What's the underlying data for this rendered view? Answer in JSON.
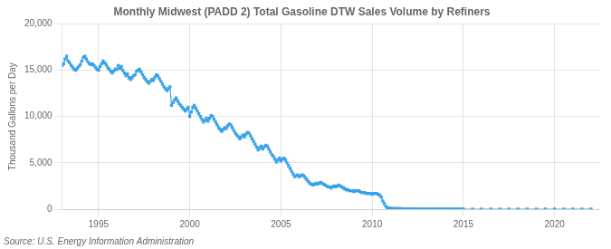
{
  "chart_data": {
    "type": "line",
    "title": "Monthly Midwest (PADD 2) Total Gasoline DTW Sales Volume by Refiners",
    "ylabel": "Thousand Gallons per Day",
    "annotations": [
      "Source: U.S. Energy Information Administration"
    ],
    "marker": "square",
    "grid": true,
    "xlim": [
      1993.0,
      2022.5
    ],
    "xticks": [
      1995,
      2000,
      2005,
      2010,
      2015,
      2020
    ],
    "ylim": [
      0,
      20000
    ],
    "yticks": [
      0,
      {
        "value": 5000,
        "label": "5,000"
      },
      {
        "value": 10000,
        "label": "10,000"
      },
      {
        "value": 15000,
        "label": "15,000"
      },
      {
        "value": 20000,
        "label": "20,000"
      }
    ],
    "x": [
      1993.0,
      1993.083,
      1993.167,
      1993.25,
      1993.333,
      1993.417,
      1993.5,
      1993.583,
      1993.667,
      1993.75,
      1993.833,
      1993.917,
      1994.0,
      1994.083,
      1994.167,
      1994.25,
      1994.333,
      1994.417,
      1994.5,
      1994.583,
      1994.667,
      1994.75,
      1994.833,
      1994.917,
      1995.0,
      1995.083,
      1995.167,
      1995.25,
      1995.333,
      1995.417,
      1995.5,
      1995.583,
      1995.667,
      1995.75,
      1995.833,
      1995.917,
      1996.0,
      1996.083,
      1996.167,
      1996.25,
      1996.333,
      1996.417,
      1996.5,
      1996.583,
      1996.667,
      1996.75,
      1996.833,
      1996.917,
      1997.0,
      1997.083,
      1997.167,
      1997.25,
      1997.333,
      1997.417,
      1997.5,
      1997.583,
      1997.667,
      1997.75,
      1997.833,
      1997.917,
      1998.0,
      1998.083,
      1998.167,
      1998.25,
      1998.333,
      1998.417,
      1998.5,
      1998.583,
      1998.667,
      1998.75,
      1998.833,
      1998.917,
      1999.0,
      1999.083,
      1999.167,
      1999.25,
      1999.333,
      1999.417,
      1999.5,
      1999.583,
      1999.667,
      1999.75,
      1999.833,
      1999.917,
      2000.0,
      2000.083,
      2000.167,
      2000.25,
      2000.333,
      2000.417,
      2000.5,
      2000.583,
      2000.667,
      2000.75,
      2000.833,
      2000.917,
      2001.0,
      2001.083,
      2001.167,
      2001.25,
      2001.333,
      2001.417,
      2001.5,
      2001.583,
      2001.667,
      2001.75,
      2001.833,
      2001.917,
      2002.0,
      2002.083,
      2002.167,
      2002.25,
      2002.333,
      2002.417,
      2002.5,
      2002.583,
      2002.667,
      2002.75,
      2002.833,
      2002.917,
      2003.0,
      2003.083,
      2003.167,
      2003.25,
      2003.333,
      2003.417,
      2003.5,
      2003.583,
      2003.667,
      2003.75,
      2003.833,
      2003.917,
      2004.0,
      2004.083,
      2004.167,
      2004.25,
      2004.333,
      2004.417,
      2004.5,
      2004.583,
      2004.667,
      2004.75,
      2004.833,
      2004.917,
      2005.0,
      2005.083,
      2005.167,
      2005.25,
      2005.333,
      2005.417,
      2005.5,
      2005.583,
      2005.667,
      2005.75,
      2005.833,
      2005.917,
      2006.0,
      2006.083,
      2006.167,
      2006.25,
      2006.333,
      2006.417,
      2006.5,
      2006.583,
      2006.667,
      2006.75,
      2006.833,
      2006.917,
      2007.0,
      2007.083,
      2007.167,
      2007.25,
      2007.333,
      2007.417,
      2007.5,
      2007.583,
      2007.667,
      2007.75,
      2007.833,
      2007.917,
      2008.0,
      2008.083,
      2008.167,
      2008.25,
      2008.333,
      2008.417,
      2008.5,
      2008.583,
      2008.667,
      2008.75,
      2008.833,
      2008.917,
      2009.0,
      2009.083,
      2009.167,
      2009.25,
      2009.333,
      2009.417,
      2009.5,
      2009.583,
      2009.667,
      2009.75,
      2009.833,
      2009.917,
      2010.0,
      2010.083,
      2010.167,
      2010.25,
      2010.333,
      2010.417,
      2010.5,
      2010.583,
      2010.667,
      2010.75,
      2010.833,
      2010.917,
      2011.0,
      2011.083,
      2011.167,
      2011.25,
      2011.333,
      2011.417,
      2011.5,
      2011.583,
      2011.667,
      2011.75,
      2011.833,
      2011.917,
      2012.0,
      2012.083,
      2012.167,
      2012.25,
      2012.333,
      2012.417,
      2012.5,
      2012.583,
      2012.667,
      2012.75,
      2012.833,
      2012.917,
      2013.0,
      2013.083,
      2013.167,
      2013.25,
      2013.333,
      2013.417,
      2013.5,
      2013.583,
      2013.667,
      2013.75,
      2013.833,
      2013.917,
      2014.0,
      2014.083,
      2014.167,
      2014.25,
      2014.333,
      2014.417,
      2014.5,
      2014.583,
      2014.667,
      2014.75,
      2014.833,
      2014.917,
      2015.0,
      2015.5,
      2016.0,
      2016.5,
      2017.0,
      2017.5,
      2018.0,
      2018.5,
      2019.0,
      2019.5,
      2020.0,
      2020.5,
      2021.0,
      2021.5,
      2022.0
    ],
    "values": [
      15500,
      15700,
      16200,
      16500,
      16000,
      15800,
      15500,
      15300,
      15100,
      15000,
      15200,
      15400,
      15600,
      16000,
      16400,
      16500,
      16200,
      15900,
      15700,
      15600,
      15700,
      15500,
      15300,
      15100,
      15000,
      15400,
      15700,
      16000,
      15800,
      15600,
      15300,
      15100,
      14900,
      14700,
      14900,
      15100,
      15100,
      15500,
      15200,
      15400,
      15000,
      14700,
      14400,
      14600,
      14200,
      14000,
      14200,
      14400,
      14500,
      14900,
      15000,
      15100,
      14800,
      14500,
      14200,
      14000,
      13800,
      13600,
      13800,
      14000,
      13900,
      14200,
      14500,
      14400,
      14100,
      13800,
      13500,
      13200,
      13000,
      12800,
      13000,
      13200,
      11200,
      11500,
      11800,
      12000,
      11700,
      11400,
      11200,
      11000,
      10800,
      10600,
      10800,
      11000,
      10000,
      10500,
      11000,
      11200,
      10900,
      10600,
      10300,
      10000,
      9700,
      9400,
      9600,
      9800,
      9500,
      9800,
      10100,
      10000,
      9700,
      9400,
      9100,
      8800,
      8600,
      8400,
      8600,
      8800,
      8700,
      9000,
      9200,
      9100,
      8800,
      8500,
      8200,
      8000,
      7800,
      7600,
      7800,
      8000,
      7800,
      8100,
      8300,
      8200,
      7900,
      7600,
      7300,
      7000,
      6700,
      6400,
      6600,
      6800,
      6500,
      6700,
      6900,
      6800,
      6500,
      6200,
      5900,
      5700,
      5400,
      5100,
      5300,
      5500,
      5200,
      5400,
      5500,
      5300,
      5000,
      4700,
      4400,
      4100,
      3800,
      3500,
      3600,
      3700,
      3500,
      3600,
      3700,
      3600,
      3400,
      3200,
      3000,
      2800,
      2700,
      2600,
      2700,
      2800,
      2700,
      2800,
      2900,
      2800,
      2700,
      2600,
      2500,
      2400,
      2400,
      2300,
      2400,
      2500,
      2400,
      2500,
      2600,
      2500,
      2400,
      2300,
      2200,
      2100,
      2100,
      2000,
      2000,
      2000,
      1900,
      2000,
      2000,
      2000,
      1900,
      1800,
      1800,
      1800,
      1700,
      1700,
      1700,
      1700,
      1600,
      1700,
      1700,
      1700,
      1600,
      1500,
      1300,
      900,
      600,
      300,
      150,
      100,
      80,
      70,
      60,
      60,
      50,
      50,
      50,
      50,
      40,
      40,
      30,
      30,
      30,
      30,
      30,
      30,
      30,
      20,
      20,
      20,
      20,
      20,
      20,
      20,
      20,
      20,
      20,
      20,
      20,
      10,
      10,
      10,
      10,
      10,
      10,
      10,
      10,
      10,
      5,
      5,
      0,
      0,
      0,
      0,
      0,
      0,
      0,
      0,
      0,
      0,
      0,
      0,
      0,
      0,
      0,
      0,
      0,
      0,
      0,
      0,
      0,
      0,
      0
    ]
  }
}
